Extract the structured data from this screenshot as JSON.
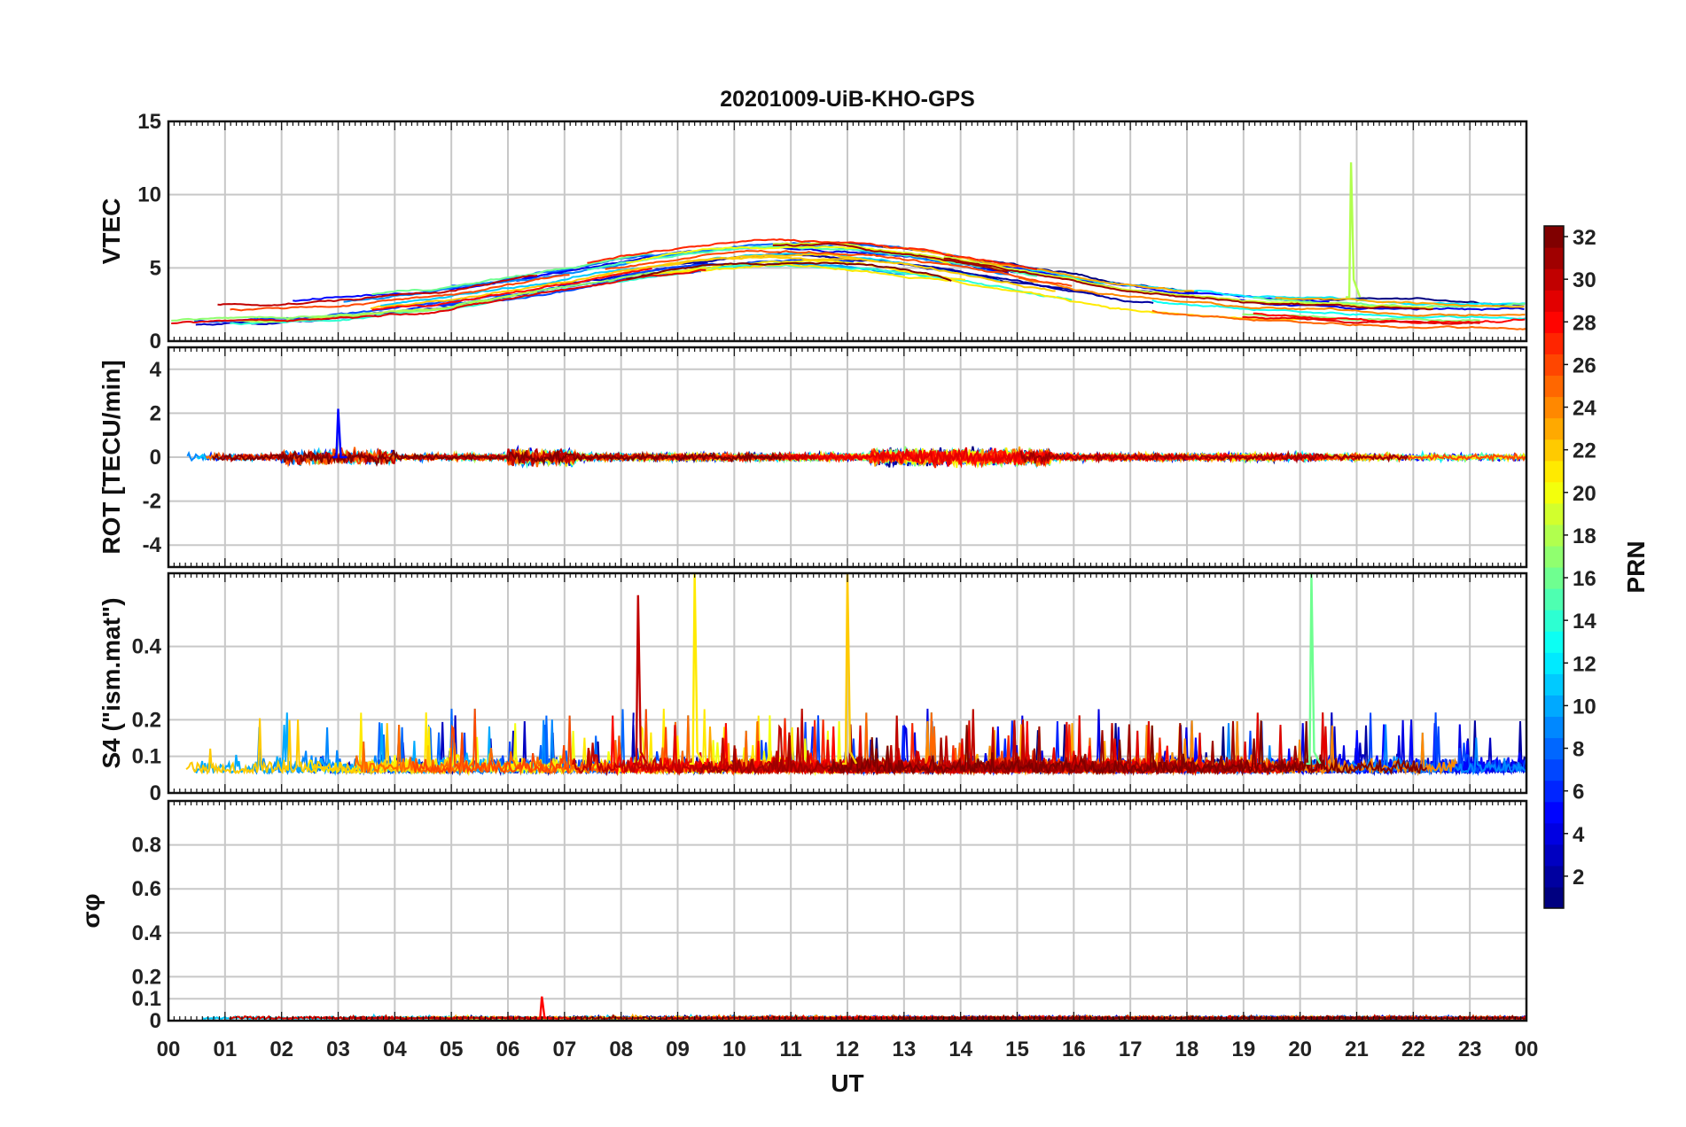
{
  "chart_data": {
    "title": "20201009-UiB-KHO-GPS",
    "type": "line",
    "xlabel": "UT",
    "x_ticks": [
      "00",
      "01",
      "02",
      "03",
      "04",
      "05",
      "06",
      "07",
      "08",
      "09",
      "10",
      "11",
      "12",
      "13",
      "14",
      "15",
      "16",
      "17",
      "18",
      "19",
      "20",
      "21",
      "22",
      "23",
      "00"
    ],
    "xlim": [
      0,
      24
    ],
    "colormap": "jet",
    "colorbar": {
      "label": "PRN",
      "range": [
        1,
        32
      ],
      "ticks": [
        "2",
        "4",
        "6",
        "8",
        "10",
        "12",
        "14",
        "16",
        "18",
        "20",
        "22",
        "24",
        "26",
        "28",
        "30",
        "32"
      ],
      "placement": "right"
    },
    "grid": true,
    "panels": [
      {
        "ylabel": "VTEC",
        "ylim": [
          0,
          15
        ],
        "yticks": [
          "0",
          "5",
          "10",
          "15"
        ],
        "typical_range": [
          1,
          8
        ],
        "notable": [
          {
            "prn": 18,
            "x": 20.9,
            "y": 12.2
          }
        ]
      },
      {
        "ylabel": "ROT [TECU/min]",
        "ylim": [
          -5,
          5
        ],
        "yticks": [
          "-4",
          "-2",
          "0",
          "2",
          "4"
        ],
        "typical_range": [
          -1,
          1
        ],
        "notable": [
          {
            "prn": 5,
            "x": 3.0,
            "y": 2.2
          }
        ]
      },
      {
        "ylabel": "S4 (\"ism.mat\")",
        "ylim": [
          0,
          0.6
        ],
        "yticks": [
          "0",
          "0.1",
          "0.2",
          "0.4"
        ],
        "typical_range": [
          0.04,
          0.15
        ],
        "notable": [
          {
            "prn": 30,
            "x": 8.3,
            "y": 0.54
          },
          {
            "prn": 21,
            "x": 9.3,
            "y": 0.6
          },
          {
            "prn": 22,
            "x": 12.0,
            "y": 0.6
          },
          {
            "prn": 16,
            "x": 20.2,
            "y": 0.6
          }
        ]
      },
      {
        "ylabel": "σφ",
        "ylim": [
          0,
          1
        ],
        "yticks": [
          "0",
          "0.1",
          "0.2",
          "0.4",
          "0.6",
          "0.8"
        ],
        "typical_range": [
          0,
          0.06
        ],
        "notable": [
          {
            "prn": 28,
            "x": 6.6,
            "y": 0.11
          }
        ]
      }
    ]
  }
}
